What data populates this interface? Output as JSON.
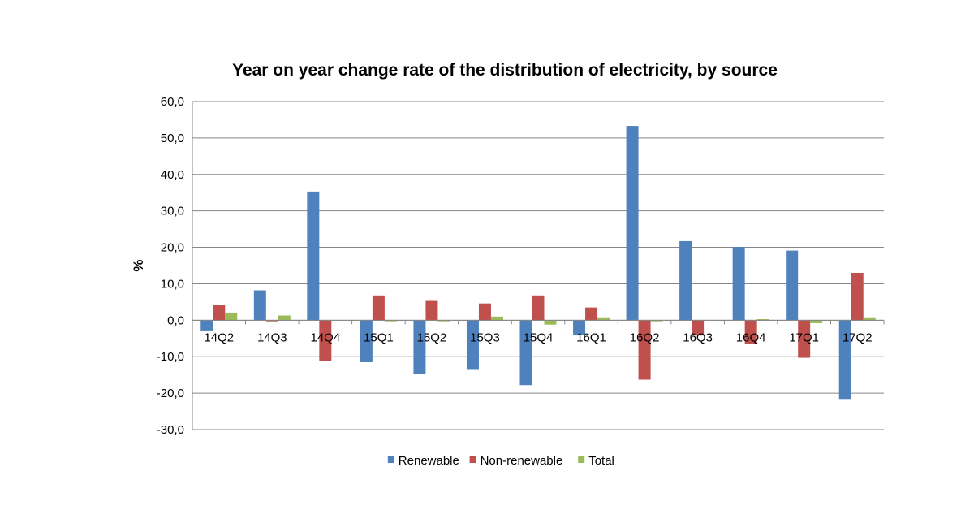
{
  "chart_data": {
    "type": "bar",
    "title": "Year on year change rate of the distribution of electricity, by source",
    "xlabel": "",
    "ylabel": "%",
    "ylim": [
      -30,
      60
    ],
    "yticks": [
      "60,0",
      "50,0",
      "40,0",
      "30,0",
      "20,0",
      "10,0",
      "0,0",
      "-10,0",
      "-20,0",
      "-30,0"
    ],
    "ytick_values": [
      60,
      50,
      40,
      30,
      20,
      10,
      0,
      -10,
      -20,
      -30
    ],
    "grid": true,
    "legend_position": "bottom",
    "categories": [
      "14Q2",
      "14Q3",
      "14Q4",
      "15Q1",
      "15Q2",
      "15Q3",
      "15Q4",
      "16Q1",
      "16Q2",
      "16Q3",
      "16Q4",
      "17Q1",
      "17Q2"
    ],
    "series": [
      {
        "name": "Renewable",
        "color": "#4f81bd",
        "values": [
          -2.8,
          8.2,
          35.3,
          -11.5,
          -14.7,
          -13.4,
          -17.8,
          -4.0,
          53.3,
          21.7,
          20.1,
          19.1,
          -21.6
        ]
      },
      {
        "name": "Non-renewable",
        "color": "#c0504d",
        "values": [
          4.2,
          -0.3,
          -11.2,
          6.8,
          5.3,
          4.6,
          6.8,
          3.5,
          -16.3,
          -4.2,
          -6.6,
          -10.3,
          13.0
        ]
      },
      {
        "name": "Total",
        "color": "#9bbb59",
        "values": [
          2.1,
          1.3,
          -0.1,
          -0.3,
          -0.3,
          1.0,
          -1.2,
          0.8,
          -0.3,
          -0.1,
          0.3,
          -0.8,
          0.8
        ]
      }
    ]
  }
}
